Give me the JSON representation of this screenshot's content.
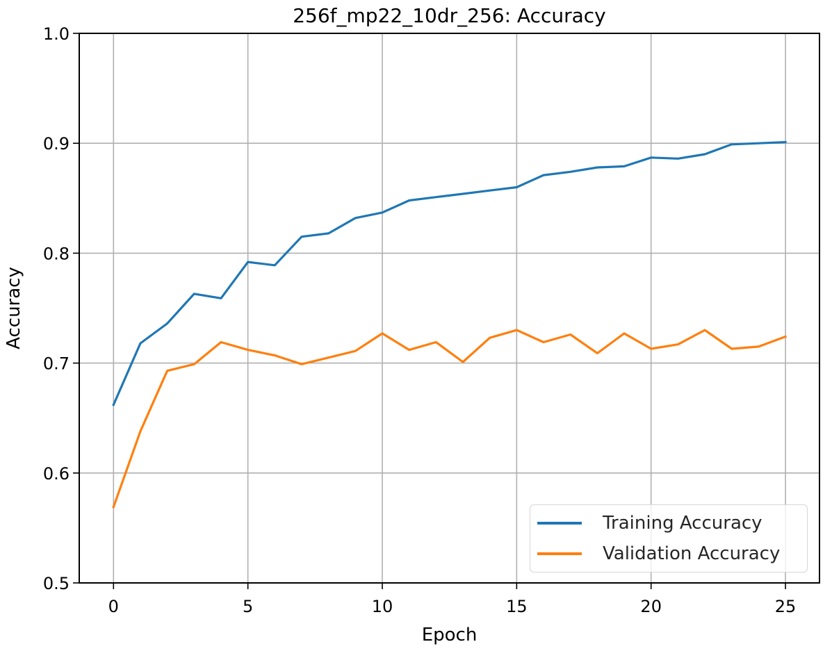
{
  "chart_data": {
    "type": "line",
    "title": "256f_mp22_10dr_256: Accuracy",
    "xlabel": "Epoch",
    "ylabel": "Accuracy",
    "xlim": [
      -1.25,
      26.25
    ],
    "ylim": [
      0.5,
      1.0
    ],
    "xticks": [
      0,
      5,
      10,
      15,
      20,
      25
    ],
    "yticks": [
      0.5,
      0.6,
      0.7,
      0.8,
      0.9,
      1.0
    ],
    "ytick_labels": [
      "0.5",
      "0.6",
      "0.7",
      "0.8",
      "0.9",
      "1.0"
    ],
    "grid": true,
    "legend_position": "lower right",
    "x": [
      0,
      1,
      2,
      3,
      4,
      5,
      6,
      7,
      8,
      9,
      10,
      11,
      12,
      13,
      14,
      15,
      16,
      17,
      18,
      19,
      20,
      21,
      22,
      23,
      24,
      25
    ],
    "series": [
      {
        "name": "Training Accuracy",
        "color": "#1f77b4",
        "values": [
          0.662,
          0.718,
          0.736,
          0.763,
          0.759,
          0.792,
          0.789,
          0.815,
          0.818,
          0.832,
          0.837,
          0.848,
          0.851,
          0.854,
          0.857,
          0.86,
          0.871,
          0.874,
          0.878,
          0.879,
          0.887,
          0.886,
          0.89,
          0.899,
          0.9,
          0.901
        ]
      },
      {
        "name": "Validation Accuracy",
        "color": "#ff7f0e",
        "values": [
          0.569,
          0.638,
          0.693,
          0.699,
          0.719,
          0.712,
          0.707,
          0.699,
          0.705,
          0.711,
          0.727,
          0.712,
          0.719,
          0.701,
          0.723,
          0.73,
          0.719,
          0.726,
          0.709,
          0.727,
          0.713,
          0.717,
          0.73,
          0.713,
          0.715,
          0.724
        ]
      }
    ]
  },
  "style": {
    "grid_color": "#b0b0b0",
    "axis_color": "#000000"
  }
}
